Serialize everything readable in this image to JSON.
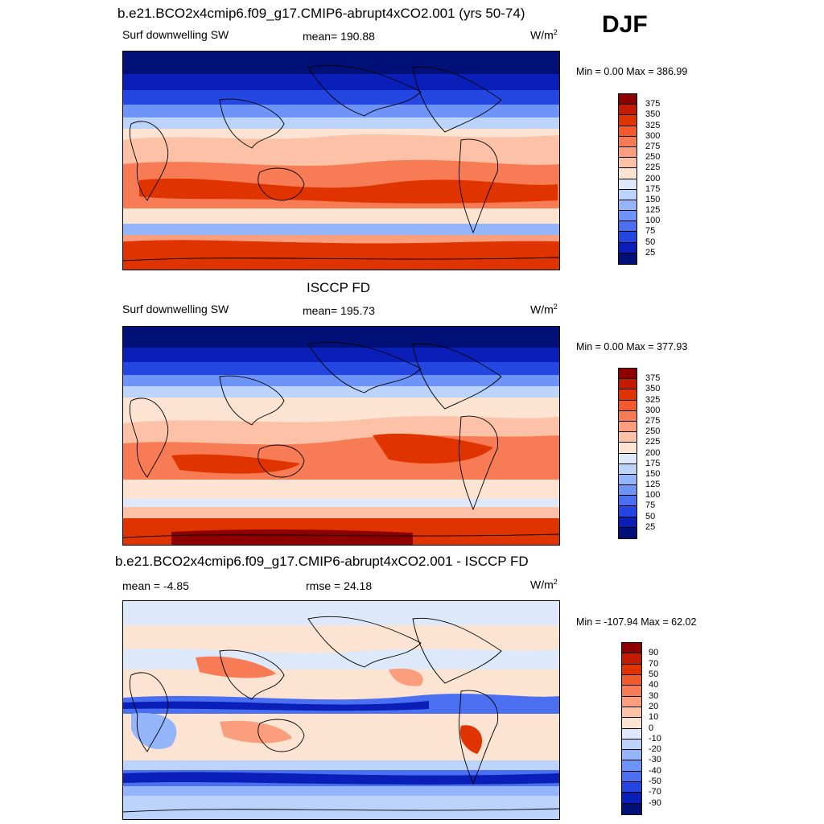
{
  "season": "DJF",
  "panels": [
    {
      "title": "b.e21.BCO2x4cmip6.f09_g17.CMIP6-abrupt4xCO2.001 (yrs 50-74)",
      "left": "Surf downwelling SW",
      "center": "mean= 190.88",
      "units": "W/m",
      "units_sup": "2",
      "minmax": "Min =   0.00 Max = 386.99"
    },
    {
      "title": "ISCCP FD",
      "left": "Surf downwelling SW",
      "center": "mean= 195.73",
      "units": "W/m",
      "units_sup": "2",
      "minmax": "Min =   0.00 Max = 377.93"
    },
    {
      "title": "b.e21.BCO2x4cmip6.f09_g17.CMIP6-abrupt4xCO2.001 - ISCCP FD",
      "left": "mean =  -4.85",
      "center": "rmse =  24.18",
      "units": "W/m",
      "units_sup": "2",
      "minmax": "Min = -107.94 Max =  62.02"
    }
  ],
  "colorbar_abs": {
    "labels": [
      "375",
      "350",
      "325",
      "300",
      "275",
      "250",
      "225",
      "200",
      "175",
      "150",
      "125",
      "100",
      "75",
      "50",
      "25"
    ],
    "colors": [
      "#8e0000",
      "#c21b00",
      "#e03400",
      "#f25a2e",
      "#f77c56",
      "#fa9e7e",
      "#fcc1a6",
      "#fde4d2",
      "#dde8fb",
      "#bcd3fb",
      "#95b5fa",
      "#6f94f7",
      "#4a6ff0",
      "#2347e0",
      "#0a1fb8",
      "#001076"
    ]
  },
  "colorbar_diff": {
    "labels": [
      "90",
      "70",
      "50",
      "40",
      "30",
      "20",
      "10",
      "0",
      "-10",
      "-20",
      "-30",
      "-40",
      "-50",
      "-70",
      "-90"
    ],
    "colors": [
      "#8e0000",
      "#c21b00",
      "#e03400",
      "#f25a2e",
      "#f77c56",
      "#fa9e7e",
      "#fcc1a6",
      "#fde4d2",
      "#dde8fb",
      "#bcd3fb",
      "#95b5fa",
      "#6f94f7",
      "#4a6ff0",
      "#2347e0",
      "#0a1fb8",
      "#001076"
    ]
  }
}
